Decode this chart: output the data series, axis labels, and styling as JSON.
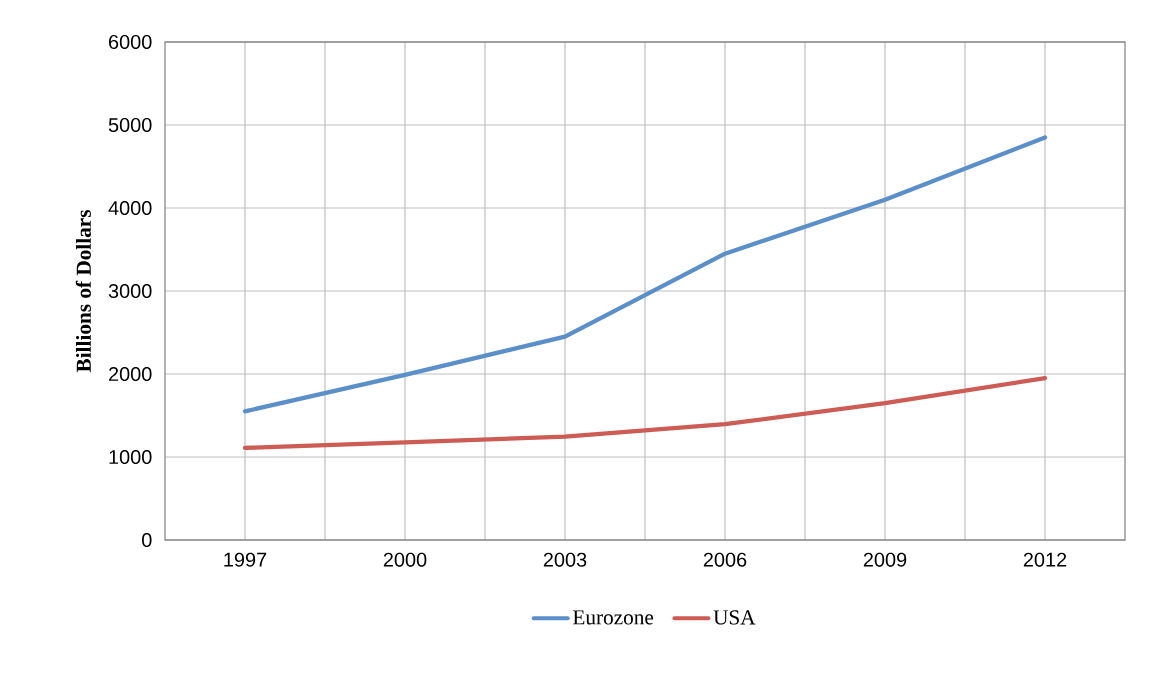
{
  "chart_data": {
    "type": "line",
    "ylabel": "Billions of Dollars",
    "x": [
      1997,
      2000,
      2003,
      2006,
      2009,
      2012
    ],
    "series": [
      {
        "name": "Eurozone",
        "color": "#5b8fc9",
        "values": [
          1550,
          1990,
          2450,
          3450,
          4100,
          4850
        ]
      },
      {
        "name": "USA",
        "color": "#cd5c55",
        "values": [
          1110,
          1175,
          1245,
          1395,
          1650,
          1950
        ]
      }
    ],
    "xlim": [
      1995.5,
      2013.5
    ],
    "xticks": [
      1997,
      {
        "value": 1998.5,
        "label": null
      },
      2000,
      {
        "value": 2001.5,
        "label": null
      },
      2003,
      {
        "value": 2004.5,
        "label": null
      },
      2006,
      {
        "value": 2007.5,
        "label": null
      },
      2009,
      {
        "value": 2010.5,
        "label": null
      },
      2012
    ],
    "ylim": [
      0,
      6000
    ],
    "yticks": [
      0,
      1000,
      2000,
      3000,
      4000,
      5000,
      6000
    ],
    "grid": true,
    "legend": "bottom",
    "marker": "none",
    "line_style": "solid"
  }
}
